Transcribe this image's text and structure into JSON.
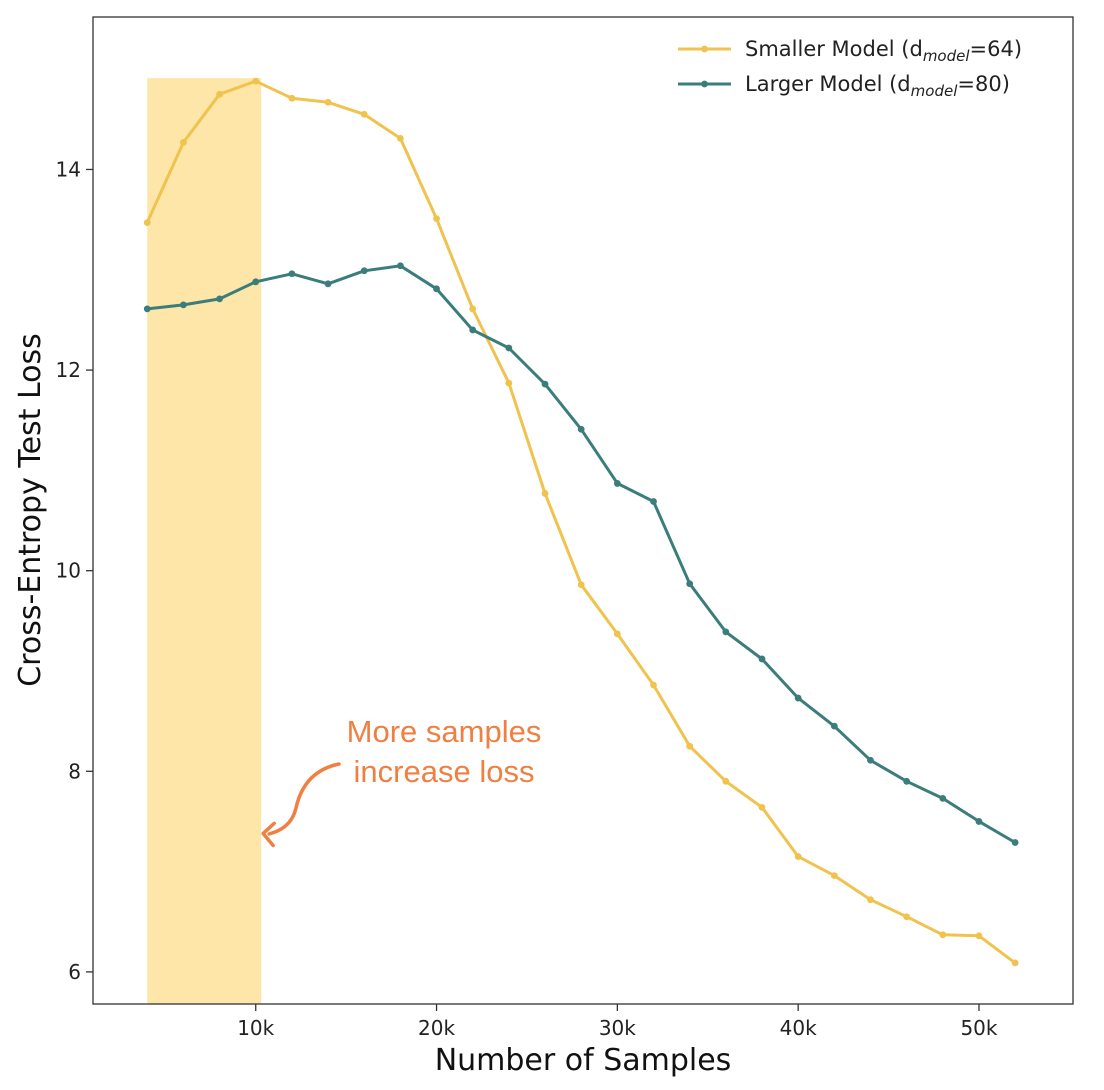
{
  "chart_data": {
    "type": "line",
    "title": "",
    "xlabel": "Number of Samples",
    "ylabel": "Cross-Entropy Test Loss",
    "xlim": [
      1000,
      55200
    ],
    "ylim": [
      5.68,
      15.52
    ],
    "x_ticks": [
      {
        "value": 10000,
        "label": "10k"
      },
      {
        "value": 20000,
        "label": "20k"
      },
      {
        "value": 30000,
        "label": "30k"
      },
      {
        "value": 40000,
        "label": "40k"
      },
      {
        "value": 50000,
        "label": "50k"
      }
    ],
    "y_ticks": [
      {
        "value": 6,
        "label": "6"
      },
      {
        "value": 8,
        "label": "8"
      },
      {
        "value": 10,
        "label": "10"
      },
      {
        "value": 12,
        "label": "12"
      },
      {
        "value": 14,
        "label": "14"
      }
    ],
    "grid": false,
    "legend_position": "top-right",
    "x": [
      4000,
      6000,
      8000,
      10000,
      12000,
      14000,
      16000,
      18000,
      20000,
      22000,
      24000,
      26000,
      28000,
      30000,
      32000,
      34000,
      36000,
      38000,
      40000,
      42000,
      44000,
      46000,
      48000,
      50000,
      52000
    ],
    "series": [
      {
        "name": "Smaller Model (dmodel=64)",
        "legend_main": "Smaller Model (d",
        "legend_sub": "model",
        "legend_tail": "=64)",
        "color": "#f0c24e",
        "values": [
          13.47,
          14.27,
          14.75,
          14.88,
          14.71,
          14.67,
          14.55,
          14.31,
          13.51,
          12.61,
          11.87,
          10.77,
          9.86,
          9.37,
          8.86,
          8.25,
          7.9,
          7.64,
          7.15,
          6.96,
          6.72,
          6.55,
          6.37,
          6.36,
          6.09
        ]
      },
      {
        "name": "Larger Model (dmodel=80)",
        "legend_main": "Larger  Model (d",
        "legend_sub": "model",
        "legend_tail": "=80)",
        "color": "#3a7d7b",
        "values": [
          12.61,
          12.65,
          12.71,
          12.88,
          12.96,
          12.86,
          12.99,
          13.04,
          12.81,
          12.4,
          12.22,
          11.86,
          11.41,
          10.87,
          10.69,
          9.87,
          9.39,
          9.12,
          8.73,
          8.45,
          8.11,
          7.9,
          7.73,
          7.5,
          7.29
        ]
      }
    ],
    "shaded_region": {
      "x_start": 4000,
      "x_end": 10300,
      "y_top": 14.91,
      "color": "#fde6a8"
    },
    "annotation": {
      "lines": [
        "More samples",
        "increase loss"
      ],
      "color": "#f07f42",
      "arrow_target_x": 10300,
      "arrow_target_y": 7.38
    }
  }
}
